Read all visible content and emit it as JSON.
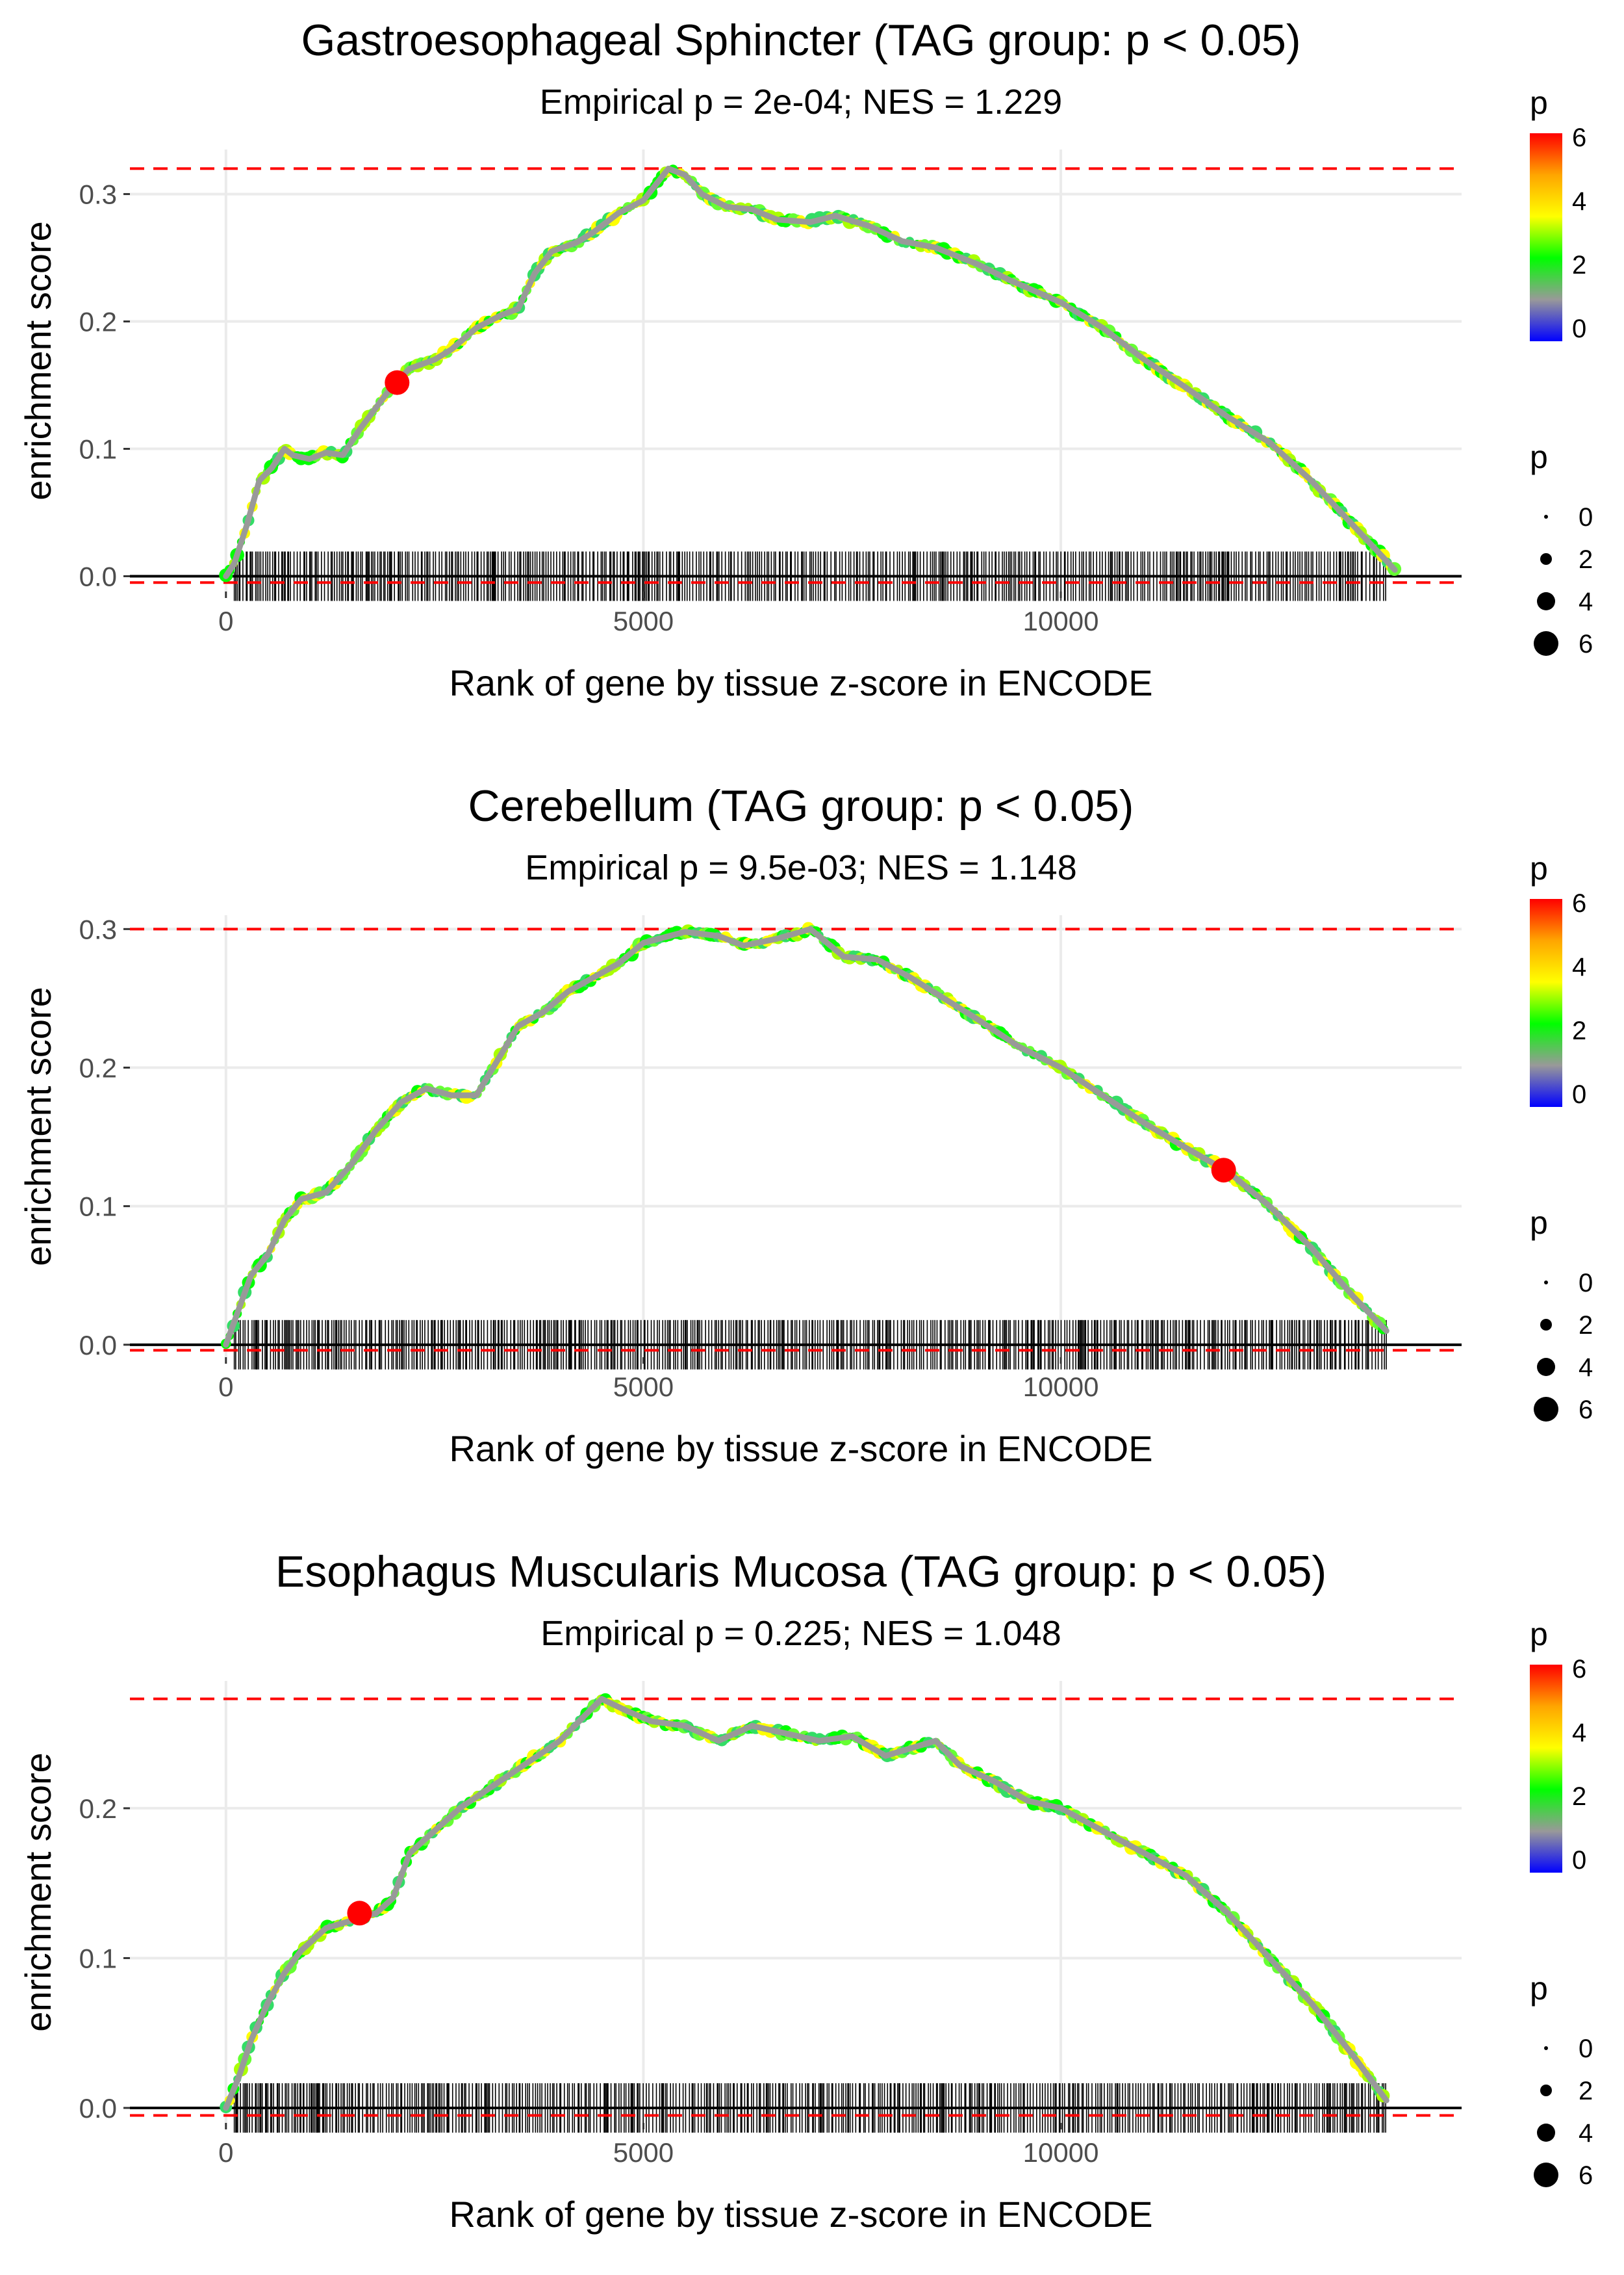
{
  "chart_data": [
    {
      "type": "line",
      "title": "Gastroesophageal Sphincter (TAG group: p < 0.05)",
      "subtitle": "Empirical p = 2e-04; NES = 1.229",
      "xlabel": "Rank of gene by tissue z-score in ENCODE",
      "ylabel": "enrichment score",
      "xlim": [
        -1150,
        14800
      ],
      "ylim": [
        -0.012,
        0.335
      ],
      "x_ticks": [
        0,
        5000,
        10000
      ],
      "x_tick_labels": [
        "0",
        "5000",
        "10000"
      ],
      "y_ticks": [
        0.0,
        0.1,
        0.2,
        0.3
      ],
      "y_tick_labels": [
        "0.0",
        "0.1",
        "0.2",
        "0.3"
      ],
      "max_es": 0.32,
      "min_es": -0.005,
      "curve": [
        [
          0,
          0
        ],
        [
          100,
          0.01
        ],
        [
          250,
          0.04
        ],
        [
          400,
          0.075
        ],
        [
          550,
          0.085
        ],
        [
          700,
          0.1
        ],
        [
          800,
          0.095
        ],
        [
          1000,
          0.092
        ],
        [
          1200,
          0.097
        ],
        [
          1400,
          0.095
        ],
        [
          1600,
          0.115
        ],
        [
          2000,
          0.15
        ],
        [
          2200,
          0.163
        ],
        [
          2500,
          0.17
        ],
        [
          2700,
          0.178
        ],
        [
          3000,
          0.195
        ],
        [
          3300,
          0.205
        ],
        [
          3500,
          0.21
        ],
        [
          3700,
          0.238
        ],
        [
          3900,
          0.255
        ],
        [
          4200,
          0.262
        ],
        [
          4400,
          0.27
        ],
        [
          4700,
          0.285
        ],
        [
          5000,
          0.295
        ],
        [
          5300,
          0.32
        ],
        [
          5500,
          0.315
        ],
        [
          5700,
          0.3
        ],
        [
          6000,
          0.29
        ],
        [
          6300,
          0.288
        ],
        [
          6600,
          0.28
        ],
        [
          7000,
          0.278
        ],
        [
          7300,
          0.283
        ],
        [
          7700,
          0.275
        ],
        [
          8100,
          0.263
        ],
        [
          8500,
          0.258
        ],
        [
          9000,
          0.245
        ],
        [
          9400,
          0.232
        ],
        [
          10000,
          0.215
        ],
        [
          10500,
          0.195
        ],
        [
          11000,
          0.17
        ],
        [
          11500,
          0.148
        ],
        [
          12000,
          0.125
        ],
        [
          12500,
          0.105
        ],
        [
          13000,
          0.075
        ],
        [
          13500,
          0.04
        ],
        [
          14000,
          0.005
        ]
      ],
      "highlight": {
        "x": 2050,
        "y": 0.152
      },
      "hit_range": [
        100,
        13900
      ],
      "hit_seed": 11
    },
    {
      "type": "line",
      "title": "Cerebellum (TAG group: p < 0.05)",
      "subtitle": "Empirical p = 9.5e-03; NES = 1.148",
      "xlabel": "Rank of gene by tissue z-score in ENCODE",
      "ylabel": "enrichment score",
      "xlim": [
        -1150,
        14800
      ],
      "ylim": [
        -0.009,
        0.31
      ],
      "x_ticks": [
        0,
        5000,
        10000
      ],
      "x_tick_labels": [
        "0",
        "5000",
        "10000"
      ],
      "y_ticks": [
        0.0,
        0.1,
        0.2,
        0.3
      ],
      "y_tick_labels": [
        "0.0",
        "0.1",
        "0.2",
        "0.3"
      ],
      "max_es": 0.3,
      "min_es": -0.004,
      "curve": [
        [
          0,
          0
        ],
        [
          150,
          0.025
        ],
        [
          300,
          0.05
        ],
        [
          500,
          0.065
        ],
        [
          700,
          0.09
        ],
        [
          900,
          0.105
        ],
        [
          1200,
          0.11
        ],
        [
          1500,
          0.13
        ],
        [
          1800,
          0.155
        ],
        [
          2100,
          0.175
        ],
        [
          2400,
          0.185
        ],
        [
          2700,
          0.18
        ],
        [
          3000,
          0.18
        ],
        [
          3200,
          0.2
        ],
        [
          3500,
          0.23
        ],
        [
          3800,
          0.24
        ],
        [
          4100,
          0.255
        ],
        [
          4400,
          0.265
        ],
        [
          4700,
          0.275
        ],
        [
          5000,
          0.29
        ],
        [
          5500,
          0.298
        ],
        [
          5900,
          0.295
        ],
        [
          6200,
          0.288
        ],
        [
          6600,
          0.293
        ],
        [
          7000,
          0.3
        ],
        [
          7400,
          0.28
        ],
        [
          7800,
          0.278
        ],
        [
          8200,
          0.265
        ],
        [
          8600,
          0.25
        ],
        [
          9000,
          0.235
        ],
        [
          9500,
          0.215
        ],
        [
          10000,
          0.2
        ],
        [
          10500,
          0.18
        ],
        [
          11000,
          0.16
        ],
        [
          11500,
          0.142
        ],
        [
          12000,
          0.125
        ],
        [
          12500,
          0.1
        ],
        [
          13000,
          0.07
        ],
        [
          13500,
          0.035
        ],
        [
          13900,
          0.01
        ]
      ],
      "highlight": {
        "x": 11950,
        "y": 0.126
      },
      "hit_range": [
        100,
        13900
      ],
      "hit_seed": 27
    },
    {
      "type": "line",
      "title": "Esophagus Muscularis Mucosa (TAG group: p < 0.05)",
      "subtitle": "Empirical p = 0.225; NES = 1.048",
      "xlabel": "Rank of gene by tissue z-score in ENCODE",
      "ylabel": "enrichment score",
      "xlim": [
        -1150,
        14800
      ],
      "ylim": [
        -0.01,
        0.285
      ],
      "x_ticks": [
        0,
        5000,
        10000
      ],
      "x_tick_labels": [
        "0",
        "5000",
        "10000"
      ],
      "y_ticks": [
        0.0,
        0.1,
        0.2
      ],
      "y_tick_labels": [
        "0.0",
        "0.1",
        "0.2"
      ],
      "max_es": 0.273,
      "min_es": -0.005,
      "curve": [
        [
          0,
          0
        ],
        [
          150,
          0.02
        ],
        [
          300,
          0.045
        ],
        [
          500,
          0.07
        ],
        [
          700,
          0.09
        ],
        [
          900,
          0.105
        ],
        [
          1200,
          0.12
        ],
        [
          1500,
          0.125
        ],
        [
          1800,
          0.13
        ],
        [
          2000,
          0.14
        ],
        [
          2200,
          0.17
        ],
        [
          2500,
          0.185
        ],
        [
          2800,
          0.2
        ],
        [
          3200,
          0.215
        ],
        [
          3600,
          0.23
        ],
        [
          4000,
          0.245
        ],
        [
          4300,
          0.262
        ],
        [
          4500,
          0.273
        ],
        [
          4800,
          0.265
        ],
        [
          5100,
          0.258
        ],
        [
          5500,
          0.255
        ],
        [
          5900,
          0.245
        ],
        [
          6300,
          0.255
        ],
        [
          6700,
          0.25
        ],
        [
          7100,
          0.245
        ],
        [
          7500,
          0.248
        ],
        [
          7900,
          0.235
        ],
        [
          8200,
          0.24
        ],
        [
          8500,
          0.245
        ],
        [
          8800,
          0.228
        ],
        [
          9200,
          0.218
        ],
        [
          9600,
          0.205
        ],
        [
          10000,
          0.2
        ],
        [
          10500,
          0.185
        ],
        [
          11000,
          0.17
        ],
        [
          11500,
          0.155
        ],
        [
          12000,
          0.13
        ],
        [
          12500,
          0.1
        ],
        [
          13000,
          0.07
        ],
        [
          13500,
          0.035
        ],
        [
          13900,
          0.005
        ]
      ],
      "highlight": {
        "x": 1600,
        "y": 0.13
      },
      "hit_range": [
        100,
        13900
      ],
      "hit_seed": 53
    }
  ],
  "legend": {
    "color_title": "p",
    "color_ticks": [
      "6",
      "4",
      "2",
      "0"
    ],
    "color_stops": [
      "#ff0000",
      "#ffa500",
      "#ffff00",
      "#00ff00",
      "#999999",
      "#0000ff"
    ],
    "size_title": "p",
    "size_labels": [
      "0",
      "2",
      "4",
      "6"
    ]
  },
  "colors": {
    "curve": "#999999",
    "highlight": "#ff0000",
    "reference_line": "#ff0000",
    "grid": "#ebebeb",
    "hits": "#000000"
  }
}
